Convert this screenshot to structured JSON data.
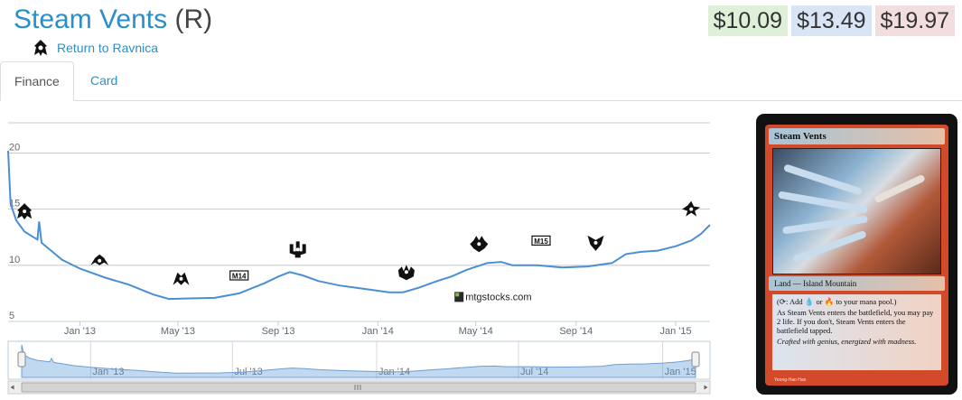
{
  "card": {
    "name": "Steam Vents",
    "rarity": "(R)",
    "set_name": "Return to Ravnica"
  },
  "prices": {
    "low": "$10.09",
    "mid": "$13.49",
    "high": "$19.97",
    "colors": {
      "low": "#dff0d8",
      "mid": "#d9e4f4",
      "high": "#f2dede"
    }
  },
  "tabs": [
    {
      "label": "Finance",
      "active": true
    },
    {
      "label": "Card",
      "active": false
    }
  ],
  "card_image": {
    "title": "Steam Vents",
    "type_line": "Land — Island Mountain",
    "rules_1": "(⟳: Add 💧 or 🔥 to your mana pool.)",
    "rules_2": "As Steam Vents enters the battlefield, you may pay 2 life. If you don't, Steam Vents enters the battlefield tapped.",
    "flavor": "Crafted with genius, energized with madness.",
    "artist": "Yeong-Hao Han"
  },
  "chart_data": {
    "type": "line",
    "watermark": "mtgstocks.com",
    "y_ticks": [
      5,
      10,
      15,
      20
    ],
    "ylim": [
      5,
      21
    ],
    "xlim": [
      "2012-10-05",
      "2015-02-12"
    ],
    "x_tick_labels": [
      {
        "label": "Jan '13",
        "date": "2013-01-01"
      },
      {
        "label": "May '13",
        "date": "2013-05-01"
      },
      {
        "label": "Sep '13",
        "date": "2013-09-01"
      },
      {
        "label": "Jan '14",
        "date": "2014-01-01"
      },
      {
        "label": "May '14",
        "date": "2014-05-01"
      },
      {
        "label": "Sep '14",
        "date": "2014-09-01"
      },
      {
        "label": "Jan '15",
        "date": "2015-01-01"
      }
    ],
    "navigator_labels": [
      {
        "label": "Jan '13",
        "date": "2013-01-01"
      },
      {
        "label": "Jul '13",
        "date": "2013-07-01"
      },
      {
        "label": "Jan '14",
        "date": "2014-01-01"
      },
      {
        "label": "Jul '14",
        "date": "2014-07-01"
      },
      {
        "label": "Jan '15",
        "date": "2015-01-01"
      }
    ],
    "series": [
      {
        "color": "#4a8fd4",
        "points": [
          [
            "2012-10-05",
            20.2
          ],
          [
            "2012-10-08",
            15.5
          ],
          [
            "2012-10-15",
            14.0
          ],
          [
            "2012-10-25",
            13.0
          ],
          [
            "2012-11-05",
            12.5
          ],
          [
            "2012-11-10",
            12.3
          ],
          [
            "2012-11-12",
            13.9
          ],
          [
            "2012-11-15",
            12.0
          ],
          [
            "2012-11-25",
            11.4
          ],
          [
            "2012-12-10",
            10.5
          ],
          [
            "2013-01-01",
            9.7
          ],
          [
            "2013-02-01",
            8.9
          ],
          [
            "2013-03-01",
            8.3
          ],
          [
            "2013-04-01",
            7.4
          ],
          [
            "2013-04-20",
            7.0
          ],
          [
            "2013-05-15",
            7.05
          ],
          [
            "2013-06-15",
            7.1
          ],
          [
            "2013-07-15",
            7.5
          ],
          [
            "2013-08-15",
            8.4
          ],
          [
            "2013-09-01",
            9.0
          ],
          [
            "2013-09-15",
            9.4
          ],
          [
            "2013-10-01",
            9.1
          ],
          [
            "2013-10-20",
            8.6
          ],
          [
            "2013-11-15",
            8.2
          ],
          [
            "2013-12-15",
            7.9
          ],
          [
            "2014-01-15",
            7.6
          ],
          [
            "2014-02-01",
            7.6
          ],
          [
            "2014-02-20",
            8.0
          ],
          [
            "2014-03-15",
            8.6
          ],
          [
            "2014-04-01",
            9.0
          ],
          [
            "2014-04-20",
            9.6
          ],
          [
            "2014-05-15",
            10.2
          ],
          [
            "2014-06-01",
            10.3
          ],
          [
            "2014-06-15",
            10.0
          ],
          [
            "2014-07-15",
            10.0
          ],
          [
            "2014-08-15",
            9.8
          ],
          [
            "2014-09-15",
            9.9
          ],
          [
            "2014-10-15",
            10.2
          ],
          [
            "2014-11-01",
            11.0
          ],
          [
            "2014-11-20",
            11.2
          ],
          [
            "2014-12-10",
            11.3
          ],
          [
            "2015-01-01",
            11.7
          ],
          [
            "2015-01-20",
            12.2
          ],
          [
            "2015-02-01",
            12.8
          ],
          [
            "2015-02-12",
            13.6
          ]
        ]
      }
    ],
    "set_markers": [
      {
        "set": "Return to Ravnica",
        "icon": "rtr-icon",
        "date": "2012-10-25",
        "price": 14.8
      },
      {
        "set": "Gatecrash",
        "icon": "gtc-icon",
        "date": "2013-01-25",
        "price": 10.4
      },
      {
        "set": "Dragon's Maze",
        "icon": "dgm-icon",
        "date": "2013-05-05",
        "price": 8.8
      },
      {
        "set": "Magic 2014",
        "icon": "m14-icon",
        "date": "2013-07-15",
        "price": 9.1
      },
      {
        "set": "Theros",
        "icon": "ths-icon",
        "date": "2013-09-25",
        "price": 11.4
      },
      {
        "set": "Born of the Gods",
        "icon": "bng-icon",
        "date": "2014-02-05",
        "price": 9.4
      },
      {
        "set": "Journey into Nyx",
        "icon": "jou-icon",
        "date": "2014-05-05",
        "price": 11.9
      },
      {
        "set": "Magic 2015",
        "icon": "m15-icon",
        "date": "2014-07-20",
        "price": 12.2
      },
      {
        "set": "Khans of Tarkir",
        "icon": "ktk-icon",
        "date": "2014-09-25",
        "price": 12.0
      },
      {
        "set": "Fate Reforged",
        "icon": "frf-icon",
        "date": "2015-01-20",
        "price": 15.0
      }
    ]
  }
}
